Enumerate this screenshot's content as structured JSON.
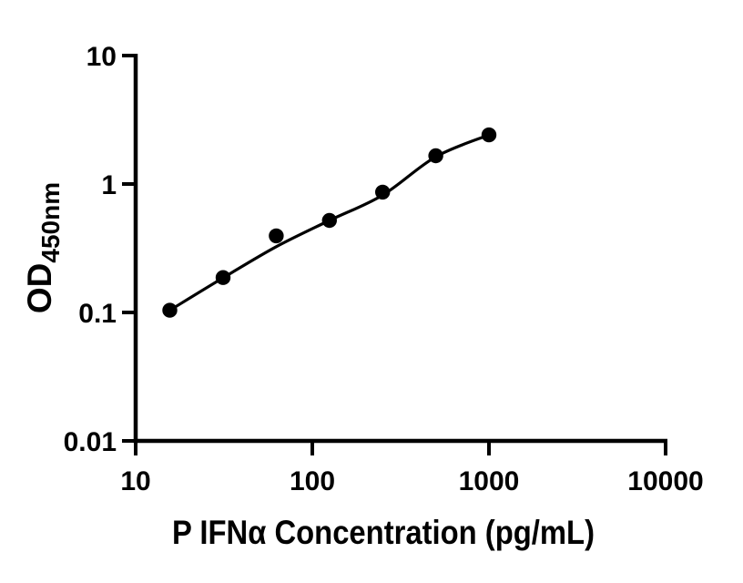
{
  "chart_data": {
    "type": "scatter",
    "title": "",
    "xlabel": "P IFNα Concentration (pg/mL)",
    "ylabel_main": "OD",
    "ylabel_sub": "450nm",
    "x_scale": "log",
    "y_scale": "log",
    "xlim": [
      10,
      10000
    ],
    "ylim": [
      0.01,
      10
    ],
    "grid": false,
    "legend": false,
    "x_ticks": [
      {
        "value": 10,
        "label": "10"
      },
      {
        "value": 100,
        "label": "100"
      },
      {
        "value": 1000,
        "label": "1000"
      },
      {
        "value": 10000,
        "label": "10000"
      }
    ],
    "y_ticks": [
      {
        "value": 10,
        "label": "10"
      },
      {
        "value": 1,
        "label": "1"
      },
      {
        "value": 0.1,
        "label": "0.1"
      },
      {
        "value": 0.01,
        "label": "0.01"
      }
    ],
    "series": [
      {
        "marker": "filled-circle",
        "color": "#000000",
        "points": [
          {
            "x": 15.6,
            "y": 0.104
          },
          {
            "x": 31.25,
            "y": 0.187
          },
          {
            "x": 62.5,
            "y": 0.395
          },
          {
            "x": 125,
            "y": 0.52
          },
          {
            "x": 250,
            "y": 0.865
          },
          {
            "x": 500,
            "y": 1.66
          },
          {
            "x": 1000,
            "y": 2.41
          }
        ]
      }
    ],
    "fit_curve_points": [
      {
        "x": 15.6,
        "y": 0.104
      },
      {
        "x": 31.25,
        "y": 0.186
      },
      {
        "x": 62.5,
        "y": 0.325
      },
      {
        "x": 125,
        "y": 0.52
      },
      {
        "x": 250,
        "y": 0.82
      },
      {
        "x": 500,
        "y": 1.63
      },
      {
        "x": 1000,
        "y": 2.41
      }
    ],
    "colors": {
      "foreground": "#000000",
      "background": "#ffffff"
    }
  }
}
